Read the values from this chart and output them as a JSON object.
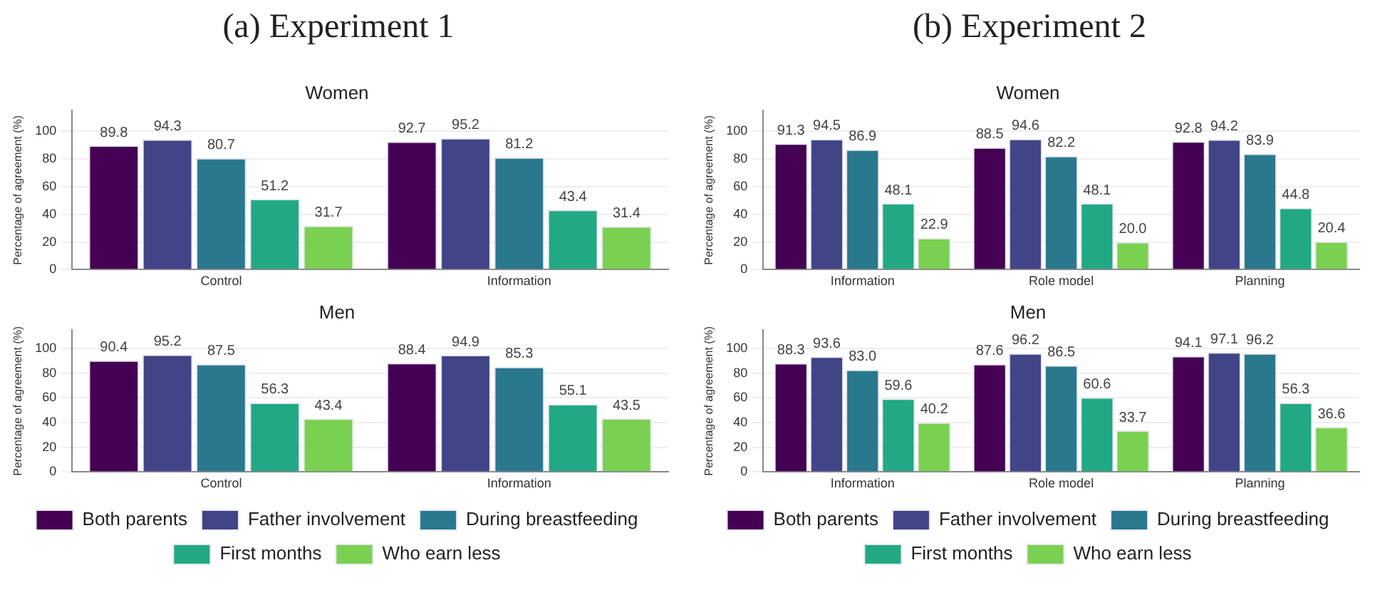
{
  "chart_data": [
    {
      "type": "bar",
      "title": "Women",
      "annotations": [
        "(a) Experiment 1"
      ],
      "ylabel": "Percentage of agreement (%)",
      "categories": [
        "Control",
        "Information"
      ],
      "ylim": [
        0,
        115
      ],
      "yticks": [
        0,
        20,
        40,
        60,
        80,
        100
      ],
      "grid": "y",
      "legend": false,
      "data_labels": true,
      "series": [
        {
          "color": "#440154",
          "values": [
            89.8,
            92.7
          ]
        },
        {
          "color": "#414487",
          "values": [
            94.3,
            95.2
          ]
        },
        {
          "color": "#2a788e",
          "values": [
            80.7,
            81.2
          ]
        },
        {
          "color": "#22a884",
          "values": [
            51.2,
            43.4
          ]
        },
        {
          "color": "#7ad151",
          "values": [
            31.7,
            31.4
          ]
        }
      ]
    },
    {
      "type": "bar",
      "title": "Men",
      "ylabel": "Percentage of agreement (%)",
      "categories": [
        "Control",
        "Information"
      ],
      "ylim": [
        0,
        115
      ],
      "yticks": [
        0,
        20,
        40,
        60,
        80,
        100
      ],
      "grid": "y",
      "legend": "bottom",
      "data_labels": true,
      "series": [
        {
          "name": "Both parents",
          "color": "#440154",
          "values": [
            90.4,
            88.4
          ]
        },
        {
          "name": "Father involvement",
          "color": "#414487",
          "values": [
            95.2,
            94.9
          ]
        },
        {
          "name": "During breastfeeding",
          "color": "#2a788e",
          "values": [
            87.5,
            85.3
          ]
        },
        {
          "name": "First months",
          "color": "#22a884",
          "values": [
            56.3,
            55.1
          ]
        },
        {
          "name": "Who earn less",
          "color": "#7ad151",
          "values": [
            43.4,
            43.5
          ]
        }
      ]
    },
    {
      "type": "bar",
      "title": "Women",
      "annotations": [
        "(b) Experiment 2"
      ],
      "ylabel": "Percentage of agreement (%)",
      "categories": [
        "Information",
        "Role model",
        "Planning"
      ],
      "ylim": [
        0,
        115
      ],
      "yticks": [
        0,
        20,
        40,
        60,
        80,
        100
      ],
      "grid": "y",
      "legend": false,
      "data_labels": true,
      "series": [
        {
          "color": "#440154",
          "values": [
            91.3,
            88.5,
            92.8
          ]
        },
        {
          "color": "#414487",
          "values": [
            94.5,
            94.6,
            94.2
          ]
        },
        {
          "color": "#2a788e",
          "values": [
            86.9,
            82.2,
            83.9
          ]
        },
        {
          "color": "#22a884",
          "values": [
            48.1,
            48.1,
            44.8
          ]
        },
        {
          "color": "#7ad151",
          "values": [
            22.9,
            20.0,
            20.4
          ],
          "value_labels": [
            "22.9",
            "20.0",
            "20.4"
          ]
        }
      ]
    },
    {
      "type": "bar",
      "title": "Men",
      "ylabel": "Percentage of agreement (%)",
      "categories": [
        "Information",
        "Role model",
        "Planning"
      ],
      "ylim": [
        0,
        115
      ],
      "yticks": [
        0,
        20,
        40,
        60,
        80,
        100
      ],
      "grid": "y",
      "legend": "bottom",
      "data_labels": true,
      "series": [
        {
          "name": "Both parents",
          "color": "#440154",
          "values": [
            88.3,
            87.6,
            94.1
          ]
        },
        {
          "name": "Father involvement",
          "color": "#414487",
          "values": [
            93.6,
            96.2,
            97.1
          ]
        },
        {
          "name": "During breastfeeding",
          "color": "#2a788e",
          "values": [
            83.0,
            86.5,
            96.2
          ],
          "value_labels": [
            "83.0",
            "86.5",
            "96.2"
          ]
        },
        {
          "name": "First months",
          "color": "#22a884",
          "values": [
            59.6,
            60.6,
            56.3
          ]
        },
        {
          "name": "Who earn less",
          "color": "#7ad151",
          "values": [
            40.2,
            33.7,
            36.6
          ]
        }
      ]
    }
  ]
}
